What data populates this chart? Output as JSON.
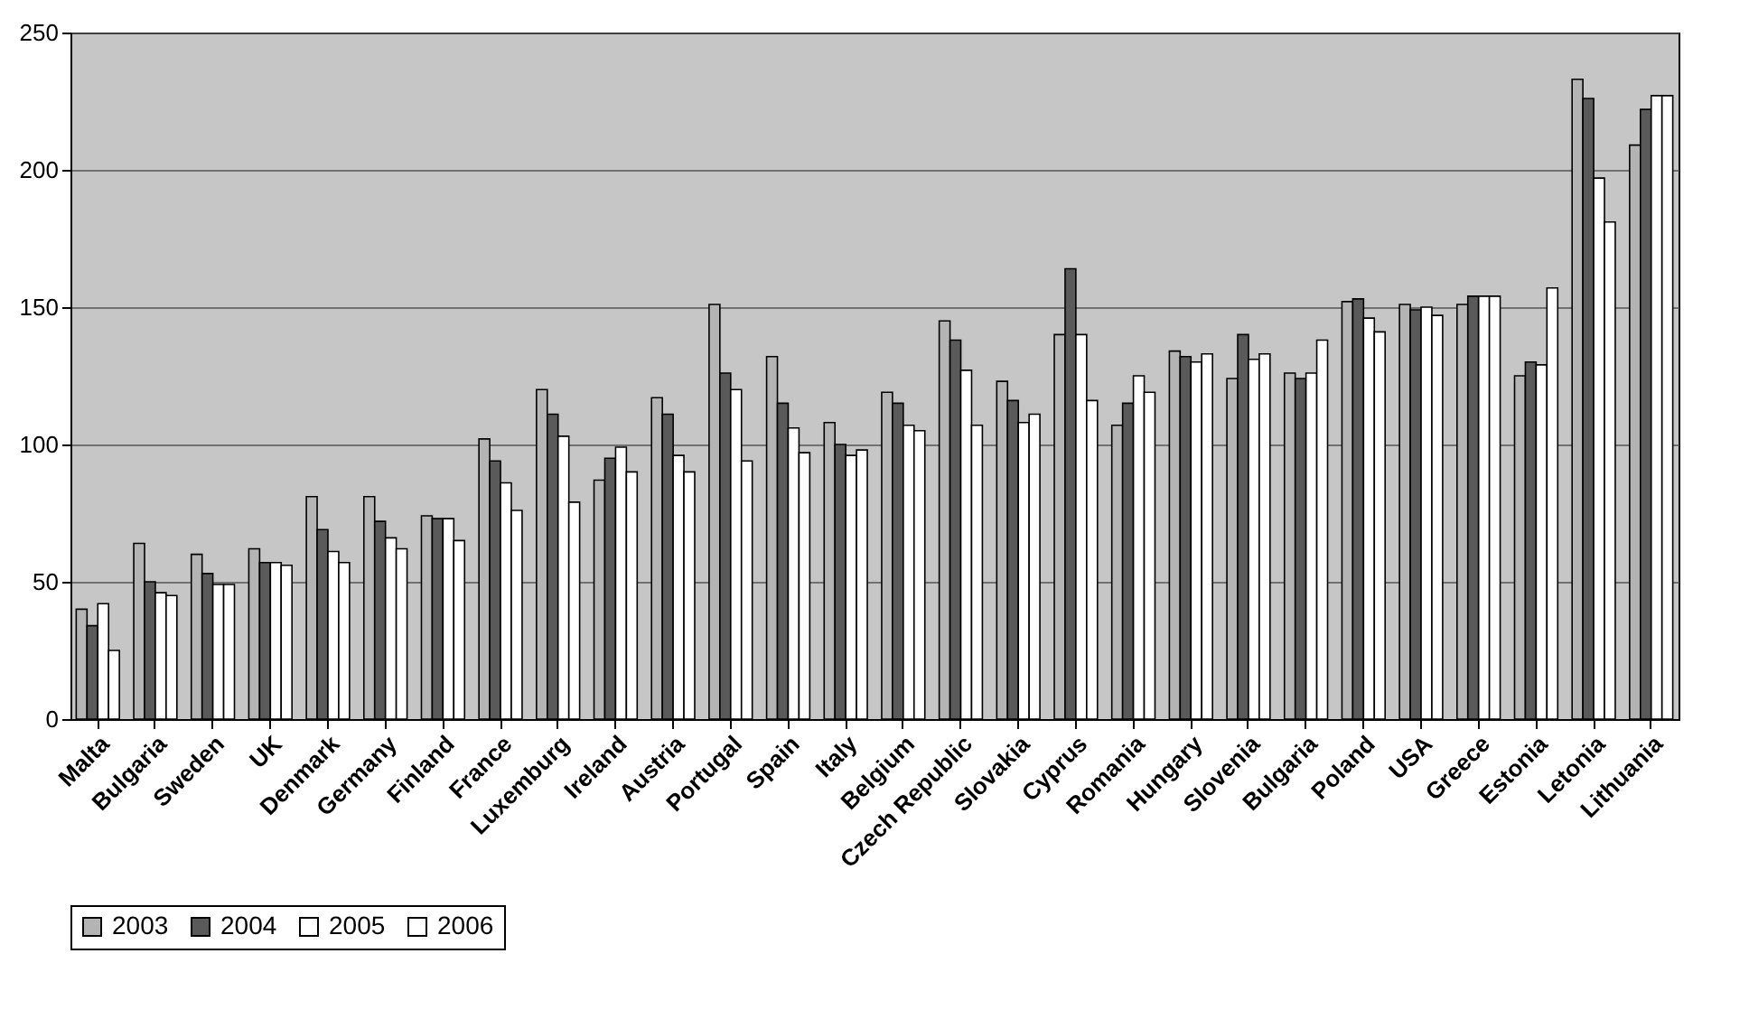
{
  "chart_data": {
    "type": "bar",
    "categories": [
      "Malta",
      "Bulgaria",
      "Sweden",
      "UK",
      "Denmark",
      "Germany",
      "Finland",
      "France",
      "Luxemburg",
      "Ireland",
      "Austria",
      "Portugal",
      "Spain",
      "Italy",
      "Belgium",
      "Czech Republic",
      "Slovakia",
      "Cyprus",
      "Romania",
      "Hungary",
      "Slovenia",
      "Bulgaria",
      "Poland",
      "USA",
      "Greece",
      "Estonia",
      "Letonia",
      "Lithuania"
    ],
    "series": [
      {
        "name": "2003",
        "color": "#b4b4b4",
        "values": [
          40,
          64,
          60,
          62,
          81,
          81,
          74,
          102,
          120,
          87,
          117,
          151,
          132,
          108,
          119,
          145,
          123,
          140,
          107,
          134,
          124,
          126,
          152,
          151,
          151,
          125,
          233,
          209
        ]
      },
      {
        "name": "2004",
        "color": "#5a5a5a",
        "values": [
          34,
          50,
          53,
          57,
          69,
          72,
          73,
          94,
          111,
          95,
          111,
          126,
          115,
          100,
          115,
          138,
          116,
          164,
          115,
          132,
          140,
          124,
          153,
          149,
          154,
          130,
          226,
          222
        ]
      },
      {
        "name": "2005",
        "color": "#ffffff",
        "values": [
          42,
          46,
          49,
          57,
          61,
          66,
          73,
          86,
          103,
          99,
          96,
          120,
          106,
          96,
          107,
          127,
          108,
          140,
          125,
          130,
          131,
          126,
          146,
          150,
          154,
          129,
          197,
          227
        ]
      },
      {
        "name": "2006",
        "color": "#ffffff",
        "values": [
          25,
          45,
          49,
          56,
          57,
          62,
          65,
          76,
          79,
          90,
          90,
          94,
          97,
          98,
          105,
          107,
          111,
          116,
          119,
          133,
          133,
          138,
          141,
          147,
          154,
          157,
          181,
          227
        ]
      }
    ],
    "ylim": [
      0,
      250
    ],
    "yticks": [
      0,
      50,
      100,
      150,
      200,
      250
    ],
    "grid": "y",
    "legend": "bottom"
  }
}
